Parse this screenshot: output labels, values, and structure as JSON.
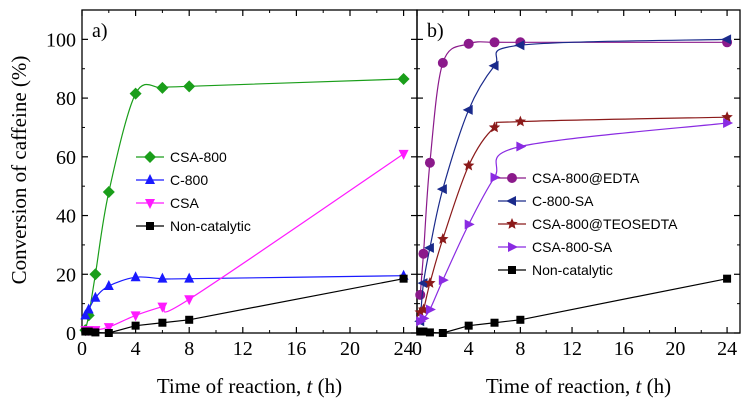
{
  "ylabel": "Conversion of caffeine (%)",
  "chart_data": [
    {
      "type": "line",
      "panel_label": "a)",
      "xlabel": "Time of reaction, ",
      "xlabel_var": "t",
      "xlabel_unit": " (h)",
      "ylabel": "Conversion of caffeine (%)",
      "xlim": [
        0,
        25
      ],
      "ylim": [
        0,
        110
      ],
      "x_ticks": [
        "0",
        "4",
        "8",
        "12",
        "16",
        "20",
        "24"
      ],
      "y_ticks": [
        "0",
        "20",
        "40",
        "60",
        "80",
        "100"
      ],
      "legend_position": "right-middle",
      "series": [
        {
          "name": "CSA-800",
          "color": "#1a9e1a",
          "marker": "diamond",
          "x": [
            0.25,
            0.5,
            1,
            2,
            4,
            6,
            8,
            24
          ],
          "y": [
            1,
            6,
            20,
            48,
            81.5,
            83.5,
            84,
            86.5
          ]
        },
        {
          "name": "C-800",
          "color": "#1a1aff",
          "marker": "triangle-up",
          "x": [
            0.25,
            0.5,
            1,
            2,
            4,
            6,
            8,
            24
          ],
          "y": [
            6,
            8,
            12,
            16,
            19,
            18.5,
            18.5,
            19.5
          ]
        },
        {
          "name": "CSA",
          "color": "#ff1aff",
          "marker": "triangle-down",
          "x": [
            0.25,
            0.5,
            1,
            2,
            4,
            6,
            8,
            24
          ],
          "y": [
            1,
            1,
            1,
            2,
            6,
            9,
            11.5,
            61
          ]
        },
        {
          "name": "Non-catalytic",
          "color": "#000000",
          "marker": "square",
          "x": [
            0.25,
            0.5,
            1,
            2,
            4,
            6,
            8,
            24
          ],
          "y": [
            0.5,
            0.5,
            0.2,
            0,
            2.5,
            3.5,
            4.5,
            18.5
          ]
        }
      ]
    },
    {
      "type": "line",
      "panel_label": "b)",
      "xlabel": "Time of reaction, ",
      "xlabel_var": "t",
      "xlabel_unit": " (h)",
      "xlim": [
        0,
        25
      ],
      "ylim": [
        0,
        110
      ],
      "x_ticks": [
        "0",
        "4",
        "8",
        "12",
        "16",
        "20",
        "24"
      ],
      "legend_position": "right-middle",
      "series": [
        {
          "name": "CSA-800@EDTA",
          "color": "#8b1a8b",
          "marker": "circle",
          "x": [
            0.25,
            0.5,
            1,
            2,
            4,
            6,
            8,
            24
          ],
          "y": [
            13,
            27,
            58,
            92,
            98.5,
            99,
            99,
            99
          ]
        },
        {
          "name": "C-800-SA",
          "color": "#1a2a8b",
          "marker": "triangle-left",
          "x": [
            0.25,
            0.5,
            1,
            2,
            4,
            6,
            8,
            24
          ],
          "y": [
            4,
            17,
            29,
            49,
            76,
            91,
            98,
            100
          ]
        },
        {
          "name": "CSA-800@TEOSEDTA",
          "color": "#8b1a1a",
          "marker": "star",
          "x": [
            0.25,
            0.5,
            1,
            2,
            4,
            6,
            8,
            24
          ],
          "y": [
            7,
            8,
            17,
            32,
            57,
            70,
            72,
            73.5
          ]
        },
        {
          "name": "CSA-800-SA",
          "color": "#8a2be2",
          "marker": "triangle-right",
          "x": [
            0.25,
            0.5,
            1,
            2,
            4,
            6,
            8,
            24
          ],
          "y": [
            4,
            5,
            8,
            18,
            37,
            53,
            63.5,
            71.5
          ]
        },
        {
          "name": "Non-catalytic",
          "color": "#000000",
          "marker": "square",
          "x": [
            0.25,
            0.5,
            1,
            2,
            4,
            6,
            8,
            24
          ],
          "y": [
            0.5,
            0.5,
            0.2,
            0,
            2.5,
            3.5,
            4.5,
            18.5
          ]
        }
      ]
    }
  ]
}
